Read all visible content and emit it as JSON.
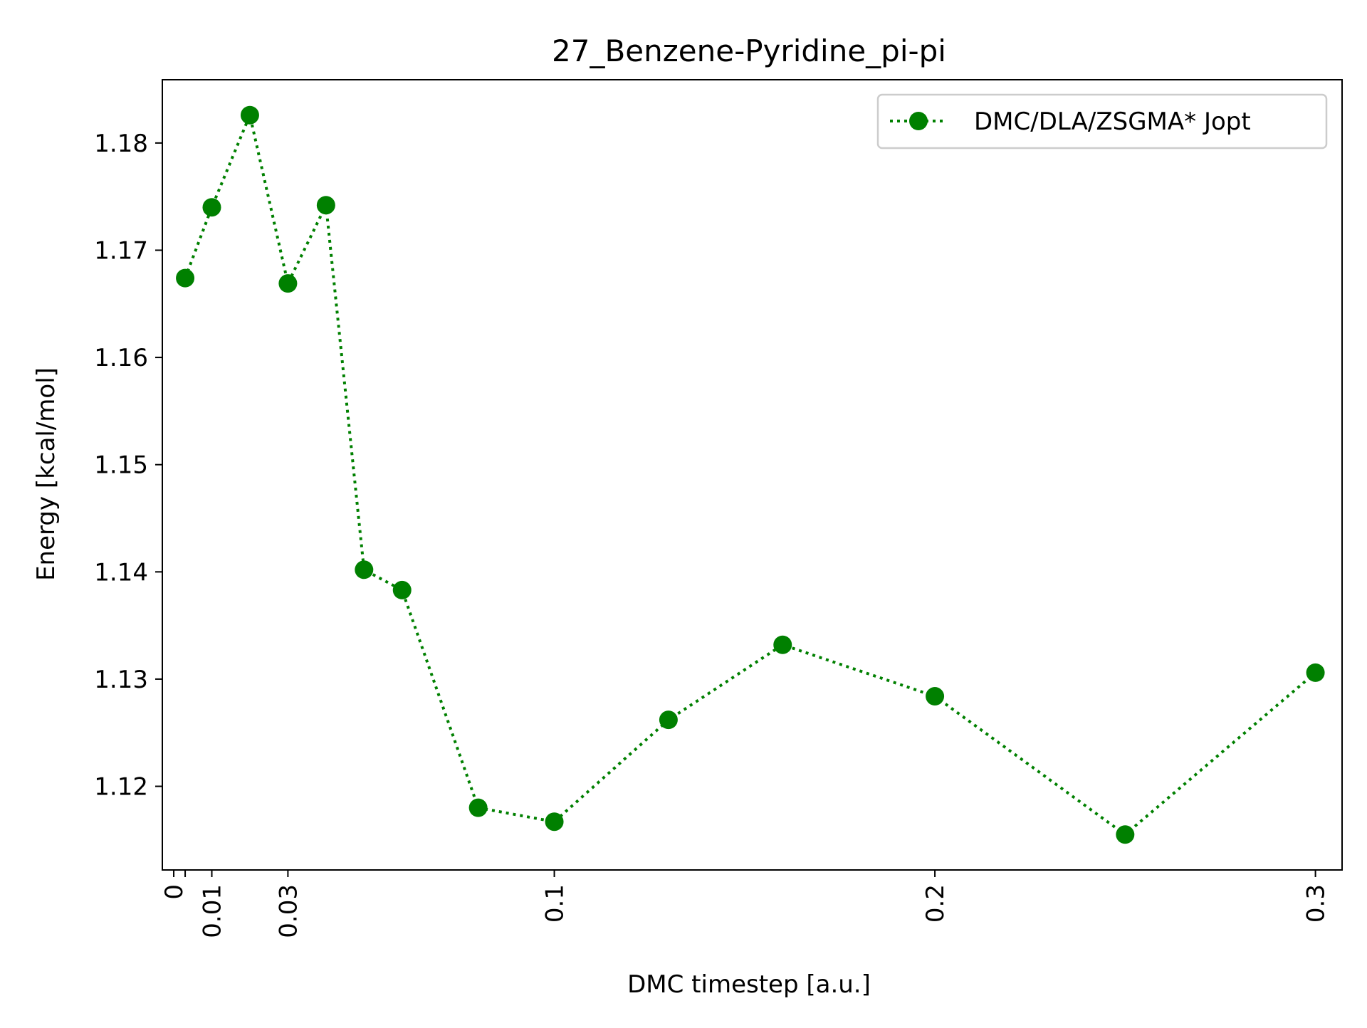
{
  "chart_data": {
    "type": "line",
    "title": "27_Benzene-Pyridine_pi-pi",
    "xlabel": "DMC timestep [a.u.]",
    "ylabel": "Energy [kcal/mol]",
    "xlim": [
      -0.003,
      0.307
    ],
    "ylim": [
      1.1122,
      1.1859
    ],
    "x_ticks": [
      0,
      0.003,
      0.01,
      0.03,
      0.1,
      0.2,
      0.3
    ],
    "x_tick_labels": [
      "0",
      "",
      "0.01",
      "0.03",
      "0.1",
      "0.2",
      "0.3"
    ],
    "y_ticks": [
      1.12,
      1.13,
      1.14,
      1.15,
      1.16,
      1.17,
      1.18
    ],
    "y_tick_labels": [
      "1.12",
      "1.13",
      "1.14",
      "1.15",
      "1.16",
      "1.17",
      "1.18"
    ],
    "grid": false,
    "legend_position": "top-right",
    "series": [
      {
        "name": "DMC/DLA/ZSGMA* Jopt",
        "color": "#008000",
        "line_style": "dotted",
        "marker": "circle",
        "x": [
          0.003,
          0.01,
          0.02,
          0.03,
          0.04,
          0.05,
          0.06,
          0.08,
          0.1,
          0.13,
          0.16,
          0.2,
          0.25,
          0.3
        ],
        "y": [
          1.1674,
          1.174,
          1.1826,
          1.1669,
          1.1742,
          1.1402,
          1.1383,
          1.118,
          1.1167,
          1.1262,
          1.1332,
          1.1284,
          1.1155,
          1.1306
        ]
      }
    ]
  }
}
